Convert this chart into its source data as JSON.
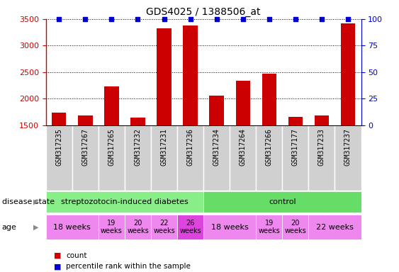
{
  "title": "GDS4025 / 1388506_at",
  "samples": [
    "GSM317235",
    "GSM317267",
    "GSM317265",
    "GSM317232",
    "GSM317231",
    "GSM317236",
    "GSM317234",
    "GSM317264",
    "GSM317266",
    "GSM317177",
    "GSM317233",
    "GSM317237"
  ],
  "counts": [
    1730,
    1680,
    2230,
    1640,
    3320,
    3380,
    2060,
    2340,
    2470,
    1650,
    1680,
    3420
  ],
  "ylim_left": [
    1500,
    3500
  ],
  "ylim_right": [
    0,
    100
  ],
  "yticks_left": [
    1500,
    2000,
    2500,
    3000,
    3500
  ],
  "yticks_right": [
    0,
    25,
    50,
    75,
    100
  ],
  "bar_color": "#cc0000",
  "percentile_color": "#0000cc",
  "grid_color": "#000000",
  "tick_color_left": "#cc0000",
  "tick_color_right": "#0000cc",
  "disease_state_groups": [
    {
      "label": "streptozotocin-induced diabetes",
      "start": 0,
      "end": 6,
      "color": "#88ee88"
    },
    {
      "label": "control",
      "start": 6,
      "end": 12,
      "color": "#66dd66"
    }
  ],
  "age_groups": [
    {
      "label": "18 weeks",
      "start": 0,
      "end": 2,
      "color": "#ee88ee",
      "fontsize": 8,
      "two_line": false
    },
    {
      "label": "19\nweeks",
      "start": 2,
      "end": 3,
      "color": "#ee88ee",
      "fontsize": 7,
      "two_line": true
    },
    {
      "label": "20\nweeks",
      "start": 3,
      "end": 4,
      "color": "#ee88ee",
      "fontsize": 7,
      "two_line": true
    },
    {
      "label": "22\nweeks",
      "start": 4,
      "end": 5,
      "color": "#ee88ee",
      "fontsize": 7,
      "two_line": true
    },
    {
      "label": "26\nweeks",
      "start": 5,
      "end": 6,
      "color": "#dd44dd",
      "fontsize": 7,
      "two_line": true
    },
    {
      "label": "18 weeks",
      "start": 6,
      "end": 8,
      "color": "#ee88ee",
      "fontsize": 8,
      "two_line": false
    },
    {
      "label": "19\nweeks",
      "start": 8,
      "end": 9,
      "color": "#ee88ee",
      "fontsize": 7,
      "two_line": true
    },
    {
      "label": "20\nweeks",
      "start": 9,
      "end": 10,
      "color": "#ee88ee",
      "fontsize": 7,
      "two_line": true
    },
    {
      "label": "22 weeks",
      "start": 10,
      "end": 12,
      "color": "#ee88ee",
      "fontsize": 8,
      "two_line": false
    }
  ],
  "sample_bg_color": "#d0d0d0",
  "sample_border_color": "#ffffff",
  "title_fontsize": 10,
  "label_fontsize": 8,
  "tick_fontsize": 8,
  "sample_fontsize": 7
}
